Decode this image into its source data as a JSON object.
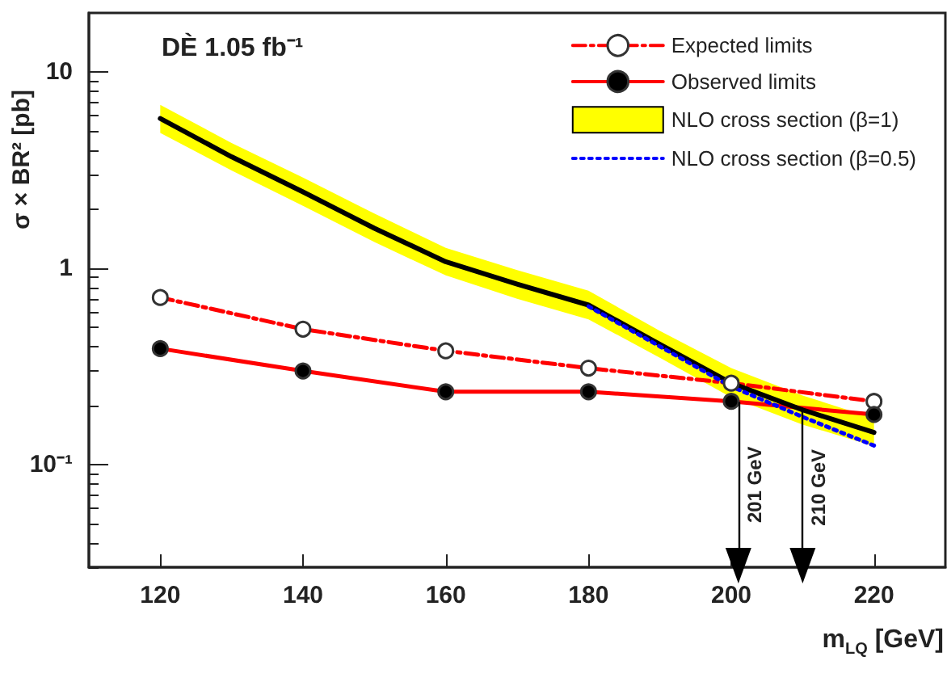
{
  "chart_data": {
    "type": "line",
    "xlabel": "m$_{LQ}$ [GeV]",
    "ylabel": "σ × BR² [pb]",
    "log": "y",
    "grid": false,
    "legend": "top right",
    "xlim": [
      110,
      230
    ],
    "xticks": [
      120,
      140,
      160,
      180,
      200,
      220
    ],
    "ylim": [
      0.03,
      20
    ],
    "yticks": [
      {
        "value": 0.1,
        "label": "10⁻¹"
      },
      1,
      10
    ],
    "series": [
      {
        "name": "Expected limits",
        "color": "#ff0000",
        "marker": "circle",
        "line_style": "dashed",
        "x": [
          120,
          140,
          160,
          180,
          200,
          220
        ],
        "values": [
          0.71,
          0.49,
          0.38,
          0.31,
          0.26,
          0.21
        ]
      },
      {
        "name": "Observed limits",
        "color": "#ff0000",
        "marker": "circle",
        "line_style": "solid",
        "x": [
          120,
          140,
          160,
          180,
          200,
          220
        ],
        "values": [
          0.39,
          0.3,
          0.235,
          0.235,
          0.21,
          0.18
        ]
      },
      {
        "name": "NLO cross section (β=1)",
        "color": "#000000",
        "marker": "none",
        "line_style": "solid",
        "x": [
          120,
          130,
          140,
          150,
          160,
          170,
          180,
          190,
          200,
          210,
          220
        ],
        "values": [
          5.8,
          3.7,
          2.45,
          1.6,
          1.08,
          0.83,
          0.65,
          0.41,
          0.26,
          0.19,
          0.146
        ],
        "lower": [
          4.9,
          3.15,
          2.08,
          1.36,
          0.92,
          0.7,
          0.55,
          0.35,
          0.22,
          0.16,
          0.124
        ],
        "upper": [
          6.8,
          4.35,
          2.9,
          1.9,
          1.27,
          0.98,
          0.77,
          0.48,
          0.31,
          0.225,
          0.172
        ]
      },
      {
        "name": "NLO cross section (β=0.5)",
        "color": "#0000ff",
        "marker": "none",
        "line_style": "dotted",
        "x": [
          180,
          190,
          200,
          210,
          220
        ],
        "values": [
          0.64,
          0.4,
          0.25,
          0.175,
          0.125
        ]
      }
    ],
    "ref_lines": [
      {
        "axis": "x",
        "value": 201,
        "label": "201 GeV",
        "color": "#000000"
      },
      {
        "axis": "x",
        "value": 210,
        "label": "210 GeV",
        "color": "#000000"
      }
    ],
    "annotations": [
      "DÈ 1.05 fb⁻¹"
    ]
  }
}
